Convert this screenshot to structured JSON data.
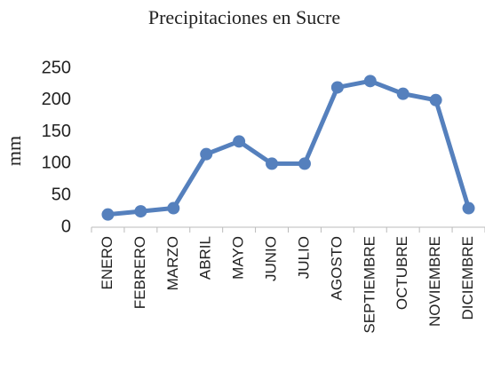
{
  "chart_data": {
    "type": "line",
    "title": "Precipitaciones en Sucre",
    "y_label": "mm",
    "categories": [
      "ENERO",
      "FEBRERO",
      "MARZO",
      "ABRIL",
      "MAYO",
      "JUNIO",
      "JULIO",
      "AGOSTO",
      "SEPTIEMBRE",
      "OCTUBRE",
      "NOVIEMBRE",
      "DICIEMBRE"
    ],
    "values": [
      20,
      25,
      30,
      115,
      135,
      100,
      100,
      220,
      230,
      210,
      200,
      30
    ],
    "color": "#5580bd",
    "ylim": [
      0,
      250
    ],
    "yticks": [
      0,
      50,
      100,
      150,
      200,
      250
    ],
    "grid": false
  }
}
